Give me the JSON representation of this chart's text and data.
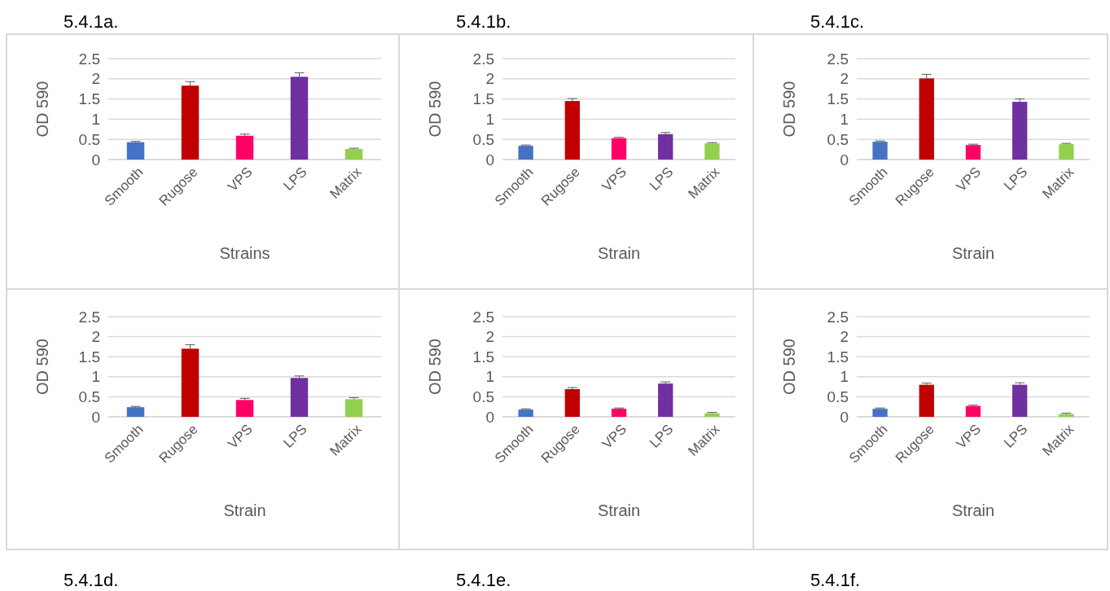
{
  "chart_data": [
    {
      "type": "bar",
      "title": "5.4.1a.",
      "xlabel": "Strains",
      "ylabel": "OD 590",
      "categories": [
        "Smooth",
        "Rugose",
        "VPS",
        "LPS",
        "Matrix"
      ],
      "values": [
        0.43,
        1.83,
        0.59,
        2.05,
        0.26
      ],
      "errors": [
        [
          0.43,
          0.45
        ],
        [
          1.83,
          1.93
        ],
        [
          0.59,
          0.63
        ],
        [
          2.05,
          2.15
        ],
        [
          0.26,
          0.28
        ]
      ],
      "colors": [
        "#4472c4",
        "#c00000",
        "#ff0066",
        "#7030a0",
        "#92d050"
      ],
      "ylim": [
        0,
        2.5
      ],
      "yticks": [
        0,
        0.5,
        1,
        1.5,
        2,
        2.5
      ],
      "grid": "y"
    },
    {
      "type": "bar",
      "title": "5.4.1b.",
      "xlabel": "Strain",
      "ylabel": "OD 590",
      "categories": [
        "Smooth",
        "Rugose",
        "VPS",
        "LPS",
        "Matrix"
      ],
      "values": [
        0.34,
        1.45,
        0.53,
        0.63,
        0.4
      ],
      "errors": [
        [
          0.34,
          0.36
        ],
        [
          1.45,
          1.51
        ],
        [
          0.53,
          0.55
        ],
        [
          0.63,
          0.67
        ],
        [
          0.4,
          0.42
        ]
      ],
      "colors": [
        "#4472c4",
        "#c00000",
        "#ff0066",
        "#7030a0",
        "#92d050"
      ],
      "ylim": [
        0,
        2.5
      ],
      "yticks": [
        0,
        0.5,
        1,
        1.5,
        2,
        2.5
      ],
      "grid": "y"
    },
    {
      "type": "bar",
      "title": "5.4.1c.",
      "xlabel": "Strain",
      "ylabel": "OD 590",
      "categories": [
        "Smooth",
        "Rugose",
        "VPS",
        "LPS",
        "Matrix"
      ],
      "values": [
        0.44,
        2.01,
        0.36,
        1.43,
        0.38
      ],
      "errors": [
        [
          0.44,
          0.46
        ],
        [
          2.01,
          2.11
        ],
        [
          0.36,
          0.38
        ],
        [
          1.43,
          1.5
        ],
        [
          0.38,
          0.4
        ]
      ],
      "colors": [
        "#4472c4",
        "#c00000",
        "#ff0066",
        "#7030a0",
        "#92d050"
      ],
      "ylim": [
        0,
        2.5
      ],
      "yticks": [
        0,
        0.5,
        1,
        1.5,
        2,
        2.5
      ],
      "grid": "y"
    },
    {
      "type": "bar",
      "title": "5.4.1d.",
      "xlabel": "Strain",
      "ylabel": "OD 590",
      "categories": [
        "Smooth",
        "Rugose",
        "VPS",
        "LPS",
        "Matrix"
      ],
      "values": [
        0.24,
        1.7,
        0.42,
        0.97,
        0.44
      ],
      "errors": [
        [
          0.24,
          0.26
        ],
        [
          1.7,
          1.8
        ],
        [
          0.42,
          0.46
        ],
        [
          0.97,
          1.02
        ],
        [
          0.44,
          0.48
        ]
      ],
      "colors": [
        "#4472c4",
        "#c00000",
        "#ff0066",
        "#7030a0",
        "#92d050"
      ],
      "ylim": [
        0,
        2.5
      ],
      "yticks": [
        0,
        0.5,
        1,
        1.5,
        2,
        2.5
      ],
      "grid": "y"
    },
    {
      "type": "bar",
      "title": "5.4.1e.",
      "xlabel": "Strain",
      "ylabel": "OD 590",
      "categories": [
        "Smooth",
        "Rugose",
        "VPS",
        "LPS",
        "Matrix"
      ],
      "values": [
        0.18,
        0.69,
        0.2,
        0.83,
        0.09
      ],
      "errors": [
        [
          0.18,
          0.2
        ],
        [
          0.69,
          0.73
        ],
        [
          0.2,
          0.22
        ],
        [
          0.83,
          0.87
        ],
        [
          0.09,
          0.11
        ]
      ],
      "colors": [
        "#4472c4",
        "#c00000",
        "#ff0066",
        "#7030a0",
        "#92d050"
      ],
      "ylim": [
        0,
        2.5
      ],
      "yticks": [
        0,
        0.5,
        1,
        1.5,
        2,
        2.5
      ],
      "grid": "y"
    },
    {
      "type": "bar",
      "title": "5.4.1f.",
      "xlabel": "Strain",
      "ylabel": "OD 590",
      "categories": [
        "Smooth",
        "Rugose",
        "VPS",
        "LPS",
        "Matrix"
      ],
      "values": [
        0.2,
        0.8,
        0.27,
        0.8,
        0.07
      ],
      "errors": [
        [
          0.2,
          0.22
        ],
        [
          0.8,
          0.84
        ],
        [
          0.27,
          0.29
        ],
        [
          0.8,
          0.85
        ],
        [
          0.07,
          0.09
        ]
      ],
      "colors": [
        "#4472c4",
        "#c00000",
        "#ff0066",
        "#7030a0",
        "#92d050"
      ],
      "ylim": [
        0,
        2.5
      ],
      "yticks": [
        0,
        0.5,
        1,
        1.5,
        2,
        2.5
      ],
      "grid": "y"
    }
  ]
}
